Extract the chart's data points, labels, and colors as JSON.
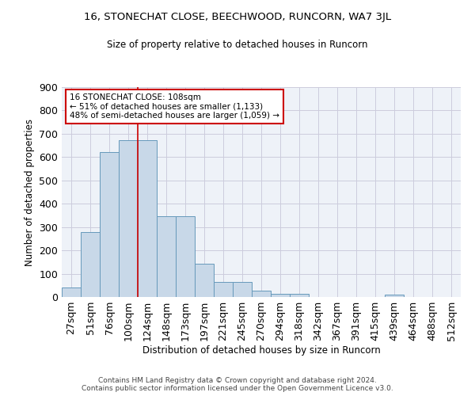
{
  "title": "16, STONECHAT CLOSE, BEECHWOOD, RUNCORN, WA7 3JL",
  "subtitle": "Size of property relative to detached houses in Runcorn",
  "xlabel": "Distribution of detached houses by size in Runcorn",
  "ylabel": "Number of detached properties",
  "categories": [
    "27sqm",
    "51sqm",
    "76sqm",
    "100sqm",
    "124sqm",
    "148sqm",
    "173sqm",
    "197sqm",
    "221sqm",
    "245sqm",
    "270sqm",
    "294sqm",
    "318sqm",
    "342sqm",
    "367sqm",
    "391sqm",
    "415sqm",
    "439sqm",
    "464sqm",
    "488sqm",
    "512sqm"
  ],
  "values": [
    42,
    280,
    623,
    672,
    672,
    345,
    345,
    143,
    65,
    65,
    28,
    15,
    12,
    0,
    0,
    0,
    0,
    10,
    0,
    0,
    0
  ],
  "bar_color": "#c8d8e8",
  "bar_edge_color": "#6699bb",
  "grid_color": "#ccccdd",
  "bg_color": "#eef2f8",
  "vline_x": 3.5,
  "vline_color": "#cc0000",
  "annotation_lines": [
    "16 STONECHAT CLOSE: 108sqm",
    "← 51% of detached houses are smaller (1,133)",
    "48% of semi-detached houses are larger (1,059) →"
  ],
  "annot_box_color": "white",
  "annot_box_edge": "#cc0000",
  "footer": "Contains HM Land Registry data © Crown copyright and database right 2024.\nContains public sector information licensed under the Open Government Licence v3.0.",
  "ylim": [
    0,
    900
  ],
  "yticks": [
    0,
    100,
    200,
    300,
    400,
    500,
    600,
    700,
    800,
    900
  ]
}
